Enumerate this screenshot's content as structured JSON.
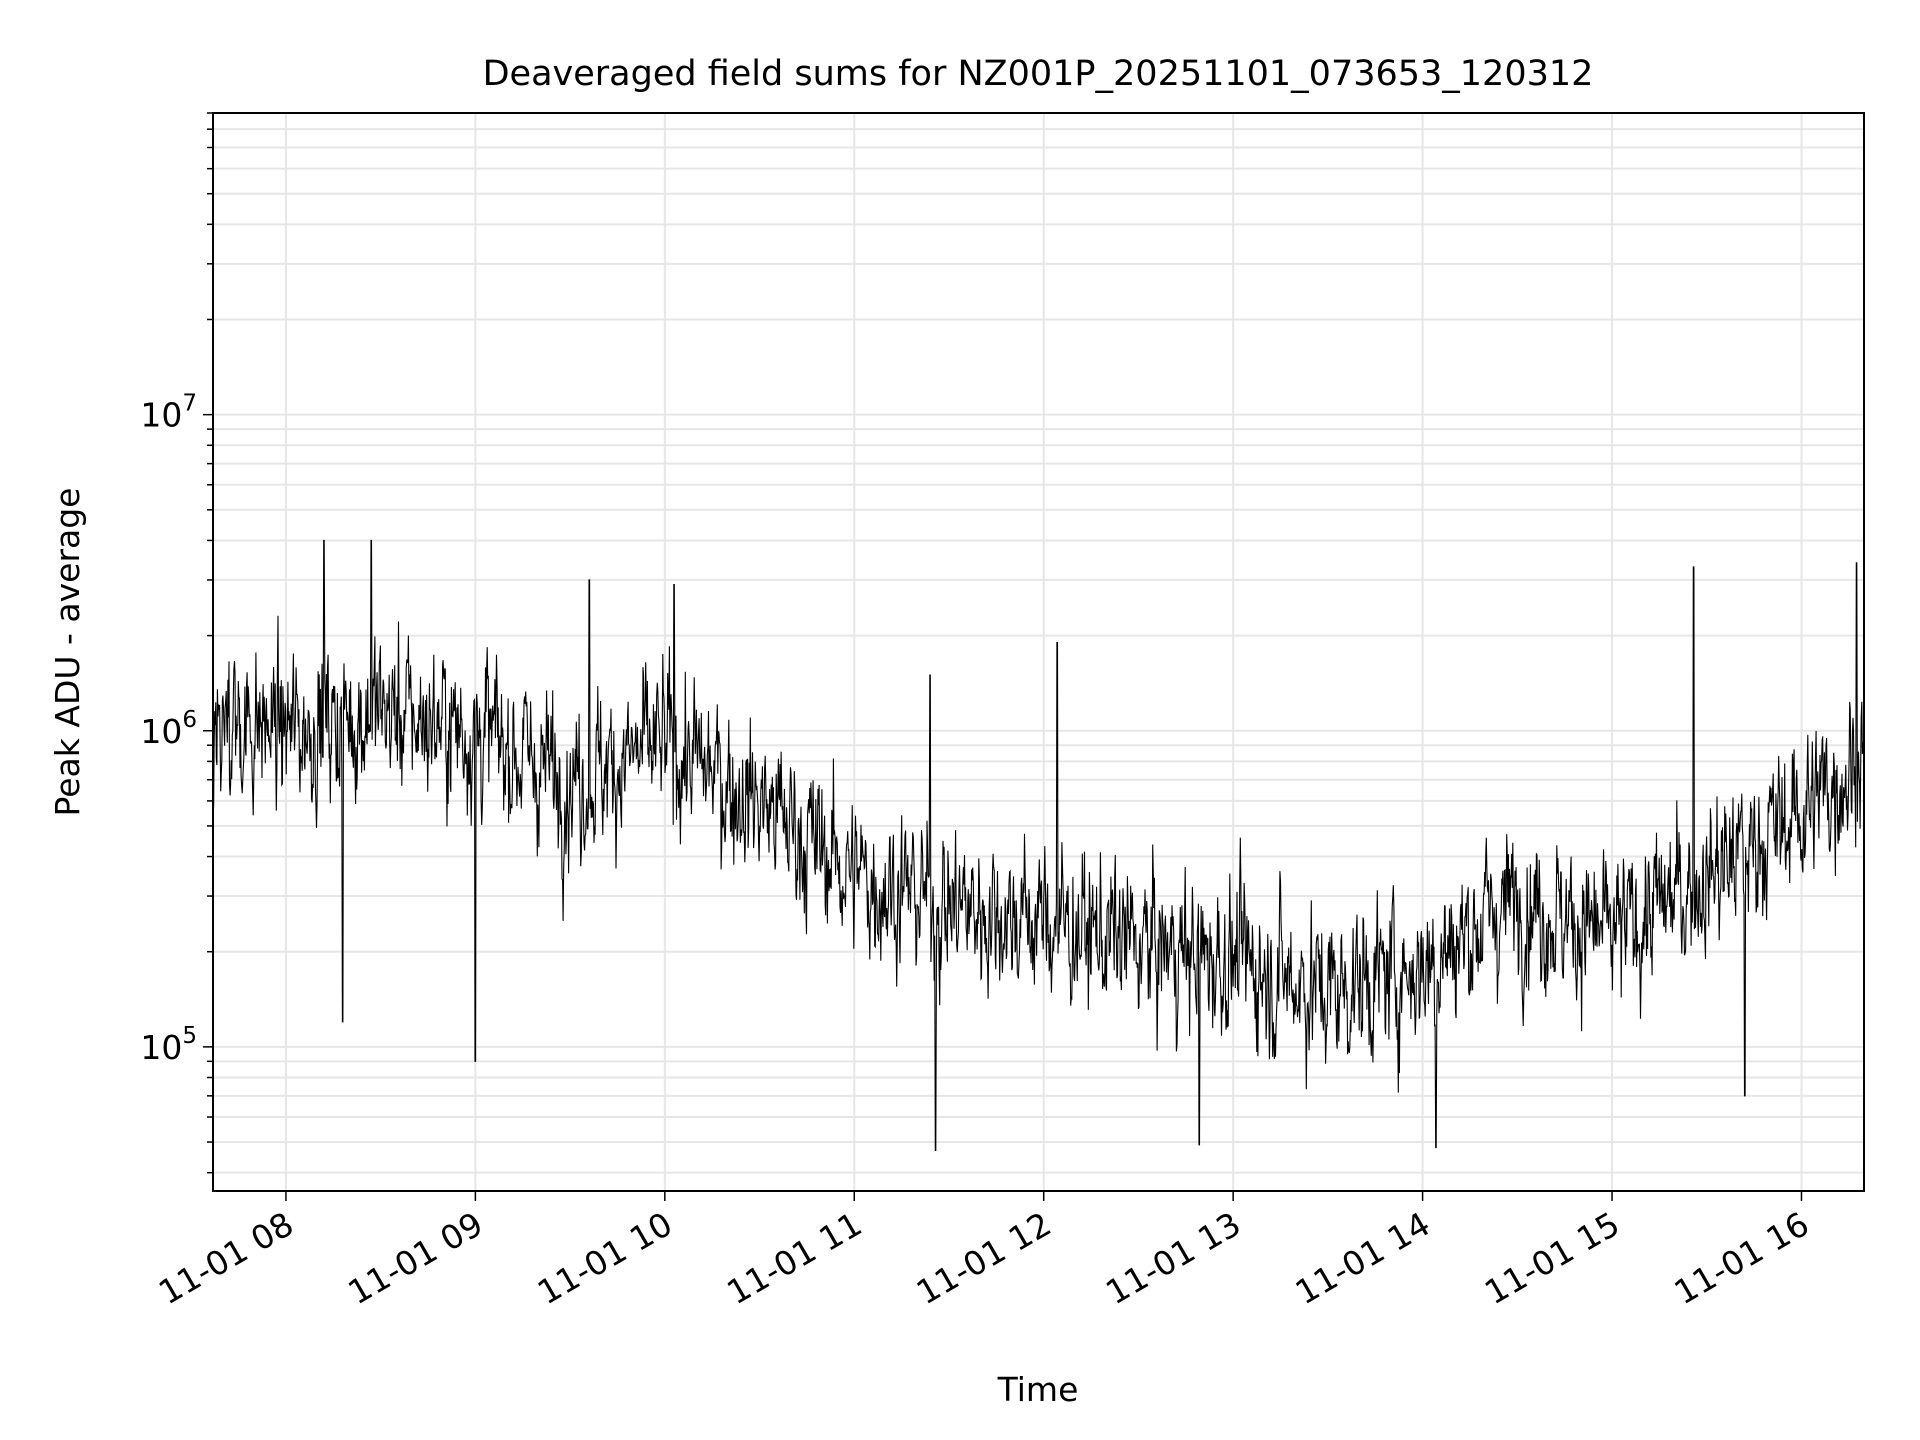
{
  "chart_data": {
    "type": "line",
    "title": "Deaveraged field sums for NZ001P_20251101_073653_120312",
    "xlabel": "Time",
    "ylabel": "Peak ADU - average",
    "y_scale": "log",
    "ylim": [
      35000,
      90000000
    ],
    "xlim_hours": [
      7.615,
      16.33
    ],
    "x_ticks": [
      {
        "hour": 8,
        "label": "11-01 08"
      },
      {
        "hour": 9,
        "label": "11-01 09"
      },
      {
        "hour": 10,
        "label": "11-01 10"
      },
      {
        "hour": 11,
        "label": "11-01 11"
      },
      {
        "hour": 12,
        "label": "11-01 12"
      },
      {
        "hour": 13,
        "label": "11-01 13"
      },
      {
        "hour": 14,
        "label": "11-01 14"
      },
      {
        "hour": 15,
        "label": "11-01 15"
      },
      {
        "hour": 16,
        "label": "11-01 16"
      }
    ],
    "y_ticks": [
      {
        "value": 100000,
        "base": "10",
        "exp": "5"
      },
      {
        "value": 1000000,
        "base": "10",
        "exp": "6"
      },
      {
        "value": 10000000,
        "base": "10",
        "exp": "7"
      }
    ],
    "grid": true,
    "line_color": "#000000",
    "grid_color": "#e6e6e6",
    "series": [
      {
        "name": "Peak ADU - average",
        "sampling": "approx. 3000 points, median envelope per hour",
        "envelope": [
          {
            "hour": 7.615,
            "median": 1100000
          },
          {
            "hour": 8.0,
            "median": 1000000
          },
          {
            "hour": 8.5,
            "median": 1150000
          },
          {
            "hour": 9.0,
            "median": 1000000
          },
          {
            "hour": 9.5,
            "median": 700000
          },
          {
            "hour": 10.0,
            "median": 900000
          },
          {
            "hour": 10.5,
            "median": 600000
          },
          {
            "hour": 11.0,
            "median": 350000
          },
          {
            "hour": 11.5,
            "median": 280000
          },
          {
            "hour": 12.0,
            "median": 250000
          },
          {
            "hour": 12.5,
            "median": 210000
          },
          {
            "hour": 13.0,
            "median": 190000
          },
          {
            "hour": 13.5,
            "median": 150000
          },
          {
            "hour": 14.0,
            "median": 180000
          },
          {
            "hour": 14.5,
            "median": 300000
          },
          {
            "hour": 15.0,
            "median": 220000
          },
          {
            "hour": 15.5,
            "median": 350000
          },
          {
            "hour": 16.0,
            "median": 550000
          },
          {
            "hour": 16.33,
            "median": 850000
          }
        ],
        "peaks": [
          {
            "hour": 8.2,
            "value": 4000000
          },
          {
            "hour": 8.45,
            "value": 4000000
          },
          {
            "hour": 9.6,
            "value": 3000000
          },
          {
            "hour": 10.05,
            "value": 2900000
          },
          {
            "hour": 11.4,
            "value": 1500000
          },
          {
            "hour": 12.07,
            "value": 1900000
          },
          {
            "hour": 15.43,
            "value": 3300000
          },
          {
            "hour": 16.29,
            "value": 3400000
          }
        ],
        "troughs": [
          {
            "hour": 8.3,
            "value": 120000
          },
          {
            "hour": 9.0,
            "value": 90000
          },
          {
            "hour": 11.43,
            "value": 47000
          },
          {
            "hour": 12.82,
            "value": 49000
          },
          {
            "hour": 14.07,
            "value": 48000
          },
          {
            "hour": 15.7,
            "value": 70000
          }
        ]
      }
    ]
  }
}
